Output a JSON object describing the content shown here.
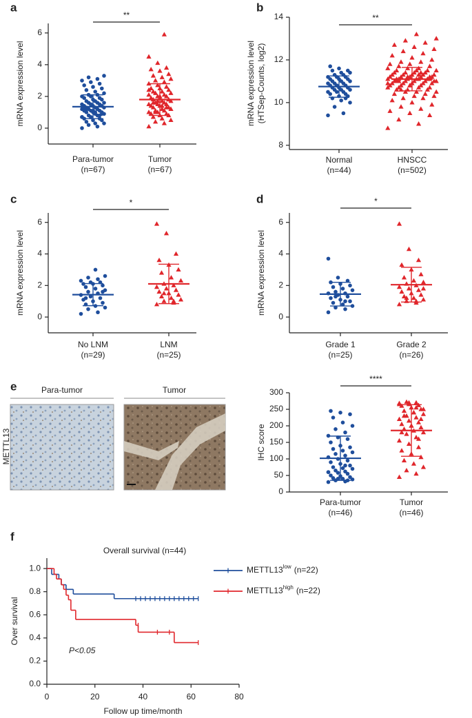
{
  "chart_data": [
    {
      "type": "dotplot",
      "letter": "a",
      "ylabel": [
        "mRNA expression level"
      ],
      "ylim": [
        -1,
        6.6
      ],
      "yticks": [
        0,
        2,
        4,
        6
      ],
      "significance": "**",
      "groups": [
        {
          "name": "Para-tumor",
          "n_label": "(n=67)",
          "color": "#1f4e9c",
          "marker": "circle",
          "mean": 1.35,
          "sd": 0.75,
          "values": [
            0.0,
            0.1,
            0.2,
            0.3,
            0.3,
            0.4,
            0.5,
            0.5,
            0.6,
            0.6,
            0.7,
            0.7,
            0.8,
            0.8,
            0.9,
            0.9,
            1.0,
            1.0,
            1.0,
            1.1,
            1.1,
            1.1,
            1.2,
            1.2,
            1.2,
            1.3,
            1.3,
            1.3,
            1.4,
            1.4,
            1.4,
            1.5,
            1.5,
            1.5,
            1.6,
            1.6,
            1.6,
            1.7,
            1.7,
            1.8,
            1.8,
            1.9,
            1.9,
            2.0,
            2.0,
            2.1,
            2.1,
            2.2,
            2.3,
            2.4,
            2.5,
            2.6,
            2.7,
            2.8,
            2.9,
            3.0,
            3.1,
            3.2,
            3.3,
            1.0,
            1.2,
            0.9,
            1.1,
            1.3,
            0.8,
            1.5,
            0.7
          ]
        },
        {
          "name": "Tumor",
          "n_label": "(n=67)",
          "color": "#e0262b",
          "marker": "triangle",
          "mean": 1.8,
          "sd": 1.0,
          "values": [
            0.1,
            0.3,
            0.4,
            0.5,
            0.6,
            0.7,
            0.8,
            0.8,
            0.9,
            0.9,
            1.0,
            1.0,
            1.1,
            1.1,
            1.2,
            1.2,
            1.3,
            1.3,
            1.4,
            1.4,
            1.5,
            1.5,
            1.5,
            1.6,
            1.6,
            1.7,
            1.7,
            1.8,
            1.8,
            1.9,
            1.9,
            2.0,
            2.0,
            2.1,
            2.1,
            2.2,
            2.2,
            2.3,
            2.3,
            2.4,
            2.5,
            2.5,
            2.6,
            2.7,
            2.8,
            2.9,
            3.0,
            3.1,
            3.2,
            3.3,
            3.4,
            3.6,
            3.7,
            3.8,
            4.1,
            4.5,
            5.9,
            1.0,
            1.2,
            1.4,
            1.6,
            1.8,
            2.0,
            0.9,
            1.3,
            1.7,
            2.4
          ]
        }
      ]
    },
    {
      "type": "dotplot",
      "letter": "b",
      "ylabel": [
        "mRNA expression level",
        "(HTSep-Counts, log2)"
      ],
      "ylim": [
        7.8,
        14
      ],
      "yticks": [
        8,
        10,
        12,
        14
      ],
      "significance": "**",
      "groups": [
        {
          "name": "Normal",
          "n_label": "(n=44)",
          "color": "#1f4e9c",
          "marker": "circle",
          "mean": 10.75,
          "sd": 0.5,
          "values": [
            9.4,
            9.5,
            9.8,
            10.0,
            10.1,
            10.2,
            10.3,
            10.3,
            10.4,
            10.4,
            10.5,
            10.5,
            10.5,
            10.6,
            10.6,
            10.6,
            10.7,
            10.7,
            10.7,
            10.8,
            10.8,
            10.8,
            10.9,
            10.9,
            10.9,
            11.0,
            11.0,
            11.0,
            11.1,
            11.1,
            11.1,
            11.2,
            11.2,
            11.2,
            11.3,
            11.3,
            11.4,
            11.4,
            11.5,
            11.5,
            11.6,
            11.7,
            10.2,
            10.8
          ]
        },
        {
          "name": "HNSCC",
          "n_label": "(n=502)",
          "color": "#e0262b",
          "marker": "triangle",
          "mean": 11.1,
          "sd": 0.55,
          "values": [
            8.8,
            9.0,
            9.2,
            9.4,
            9.5,
            9.6,
            9.7,
            9.8,
            9.9,
            10.0,
            10.1,
            10.2,
            10.2,
            10.3,
            10.3,
            10.4,
            10.4,
            10.5,
            10.5,
            10.5,
            10.6,
            10.6,
            10.6,
            10.7,
            10.7,
            10.7,
            10.7,
            10.8,
            10.8,
            10.8,
            10.8,
            10.9,
            10.9,
            10.9,
            10.9,
            10.9,
            11.0,
            11.0,
            11.0,
            11.0,
            11.0,
            11.0,
            11.1,
            11.1,
            11.1,
            11.1,
            11.1,
            11.1,
            11.1,
            11.2,
            11.2,
            11.2,
            11.2,
            11.2,
            11.2,
            11.3,
            11.3,
            11.3,
            11.3,
            11.3,
            11.4,
            11.4,
            11.4,
            11.4,
            11.5,
            11.5,
            11.5,
            11.5,
            11.6,
            11.6,
            11.6,
            11.7,
            11.7,
            11.8,
            11.8,
            11.9,
            11.9,
            12.0,
            12.1,
            12.2,
            12.3,
            12.4,
            12.5,
            12.6,
            12.7,
            12.8,
            12.9,
            13.0,
            13.2,
            11.0,
            11.1,
            11.2,
            10.9,
            11.3,
            11.0,
            11.1,
            10.8,
            11.2,
            11.4,
            10.6
          ]
        }
      ]
    },
    {
      "type": "dotplot",
      "letter": "c",
      "ylabel": [
        "mRNA expression level"
      ],
      "ylim": [
        -1,
        6.6
      ],
      "yticks": [
        0,
        2,
        4,
        6
      ],
      "significance": "*",
      "groups": [
        {
          "name": "No LNM",
          "n_label": "(n=29)",
          "color": "#1f4e9c",
          "marker": "circle",
          "mean": 1.42,
          "sd": 0.7,
          "values": [
            0.2,
            0.3,
            0.5,
            0.6,
            0.7,
            0.8,
            0.9,
            1.0,
            1.1,
            1.2,
            1.3,
            1.4,
            1.5,
            1.6,
            1.7,
            1.8,
            1.9,
            2.0,
            2.1,
            2.1,
            2.2,
            2.2,
            2.3,
            2.4,
            2.5,
            2.6,
            3.0,
            1.2,
            1.6
          ]
        },
        {
          "name": "LNM",
          "n_label": "(n=25)",
          "color": "#e0262b",
          "marker": "triangle",
          "mean": 2.1,
          "sd": 1.25,
          "values": [
            0.8,
            0.9,
            1.0,
            1.1,
            1.2,
            1.3,
            1.4,
            1.5,
            1.6,
            1.7,
            1.8,
            1.9,
            2.0,
            2.1,
            2.3,
            2.5,
            2.8,
            3.0,
            3.3,
            3.6,
            4.0,
            5.3,
            5.9,
            1.0,
            1.5
          ]
        }
      ]
    },
    {
      "type": "dotplot",
      "letter": "d",
      "ylabel": [
        "mRNA expression level"
      ],
      "ylim": [
        -1,
        6.6
      ],
      "yticks": [
        0,
        2,
        4,
        6
      ],
      "significance": "*",
      "groups": [
        {
          "name": "Grade 1",
          "n_label": "(n=25)",
          "color": "#1f4e9c",
          "marker": "circle",
          "mean": 1.45,
          "sd": 0.75,
          "values": [
            0.3,
            0.5,
            0.6,
            0.7,
            0.8,
            0.9,
            1.0,
            1.1,
            1.2,
            1.3,
            1.4,
            1.5,
            1.5,
            1.6,
            1.7,
            1.8,
            1.9,
            2.0,
            2.1,
            2.2,
            2.3,
            2.5,
            3.7,
            1.0,
            1.3
          ]
        },
        {
          "name": "Grade 2",
          "n_label": "(n=26)",
          "color": "#e0262b",
          "marker": "triangle",
          "mean": 2.05,
          "sd": 1.1,
          "values": [
            0.8,
            0.9,
            1.0,
            1.1,
            1.2,
            1.3,
            1.4,
            1.5,
            1.6,
            1.7,
            1.8,
            1.9,
            2.0,
            2.1,
            2.2,
            2.3,
            2.5,
            2.7,
            3.0,
            3.3,
            3.6,
            4.3,
            5.9,
            1.0,
            1.2,
            1.8
          ]
        }
      ]
    },
    {
      "type": "dotplot",
      "ylabel": [
        "IHC score"
      ],
      "ylim": [
        0,
        300
      ],
      "yticks": [
        0,
        50,
        100,
        150,
        200,
        250,
        300
      ],
      "significance": "****",
      "groups": [
        {
          "name": "Para-tumor",
          "n_label": "(n=46)",
          "color": "#1f4e9c",
          "marker": "circle",
          "mean": 102,
          "sd": 67,
          "values": [
            30,
            32,
            35,
            38,
            40,
            42,
            45,
            48,
            50,
            55,
            58,
            60,
            62,
            65,
            70,
            72,
            75,
            80,
            85,
            90,
            95,
            100,
            105,
            110,
            115,
            120,
            125,
            130,
            135,
            140,
            150,
            160,
            165,
            170,
            180,
            190,
            200,
            210,
            225,
            235,
            240,
            245,
            35,
            40,
            60,
            80
          ]
        },
        {
          "name": "Tumor",
          "n_label": "(n=46)",
          "color": "#e0262b",
          "marker": "triangle",
          "mean": 186,
          "sd": 78,
          "values": [
            45,
            55,
            65,
            75,
            85,
            95,
            105,
            115,
            125,
            135,
            145,
            155,
            165,
            175,
            180,
            185,
            190,
            195,
            200,
            205,
            210,
            215,
            220,
            225,
            230,
            235,
            240,
            245,
            250,
            255,
            260,
            262,
            265,
            268,
            270,
            272,
            250,
            240,
            230,
            220,
            200,
            180,
            160,
            270,
            265,
            255
          ]
        }
      ]
    },
    {
      "type": "survival",
      "letter": "f",
      "title": "Overall survival (n=44)",
      "xlabel": "Follow up time/month",
      "ylabel": "Over survival",
      "annotation": "P<0.05",
      "xlim": [
        0,
        80
      ],
      "xticks": [
        0,
        20,
        40,
        60,
        80
      ],
      "ylim": [
        0,
        1.09
      ],
      "yticks": [
        {
          "value": 0,
          "label": "0.0"
        },
        {
          "value": 0.2,
          "label": "0.2"
        },
        {
          "value": 0.4,
          "label": "0.4"
        },
        {
          "value": 0.6,
          "label": "0.6"
        },
        {
          "value": 0.8,
          "label": "0.8"
        },
        {
          "value": 1,
          "label": "1.0"
        }
      ],
      "series": [
        {
          "name": "METTL13",
          "superscript": "low",
          "n_label": "(n=22)",
          "color": "#1f4e9c",
          "x": [
            0,
            2,
            5,
            6,
            8,
            11,
            28,
            63
          ],
          "values": [
            1,
            0.95,
            0.91,
            0.86,
            0.82,
            0.78,
            0.74,
            0.74
          ],
          "censored_x": [
            37,
            39,
            41,
            43,
            45,
            47,
            49,
            51,
            53,
            55,
            57,
            59,
            61,
            63
          ],
          "censored_values": [
            0.74,
            0.74,
            0.74,
            0.74,
            0.74,
            0.74,
            0.74,
            0.74,
            0.74,
            0.74,
            0.74,
            0.74,
            0.74,
            0.74
          ]
        },
        {
          "name": "METTL13",
          "superscript": "high",
          "n_label": "(n=22)",
          "color": "#e0262b",
          "x": [
            0,
            3,
            4,
            6,
            7,
            8,
            9,
            10,
            12,
            37,
            38,
            53,
            63
          ],
          "values": [
            1,
            0.95,
            0.91,
            0.86,
            0.82,
            0.77,
            0.73,
            0.64,
            0.56,
            0.51,
            0.45,
            0.36,
            0.36
          ],
          "censored_x": [
            38,
            46,
            51,
            63
          ],
          "censored_values": [
            0.51,
            0.45,
            0.45,
            0.36
          ]
        }
      ]
    }
  ],
  "micrograph": {
    "letter": "e",
    "row_label": "METTL13",
    "panels": [
      "Para-tumor",
      "Tumor"
    ]
  }
}
